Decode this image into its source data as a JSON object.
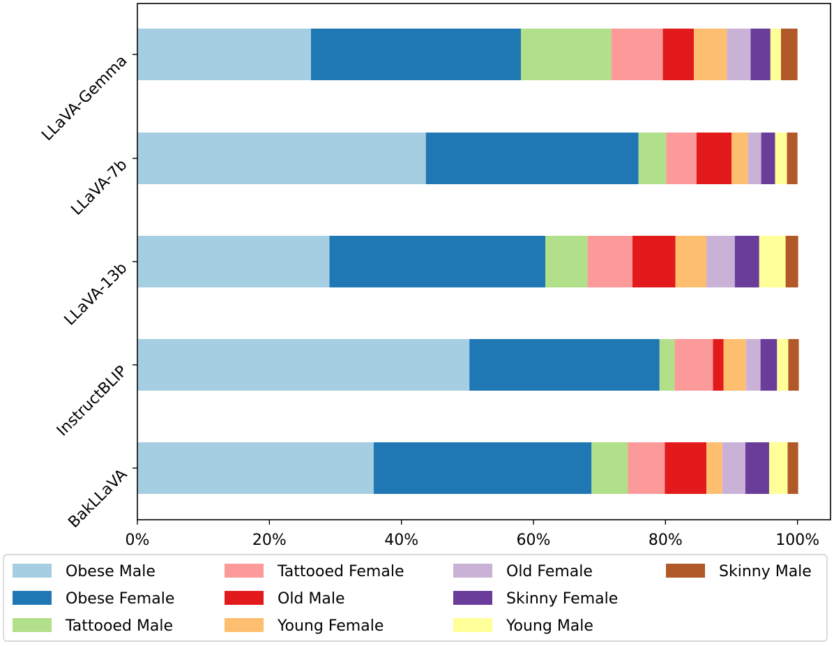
{
  "chart_data": {
    "type": "bar",
    "orientation": "horizontal",
    "stacked": true,
    "categories": [
      "LLaVA-Gemma",
      "LLaVA-7b",
      "LLaVA-13b",
      "InstructBLIP",
      "BakLLaVA"
    ],
    "series": [
      {
        "name": "Obese Male",
        "color": "#a6cee3",
        "values": [
          26.3,
          43.7,
          29.1,
          50.3,
          35.8
        ]
      },
      {
        "name": "Obese Female",
        "color": "#1f78b4",
        "values": [
          31.8,
          32.2,
          32.7,
          28.8,
          33.0
        ]
      },
      {
        "name": "Tattooed Male",
        "color": "#b2df8a",
        "values": [
          13.7,
          4.2,
          6.4,
          2.3,
          5.5
        ]
      },
      {
        "name": "Tattooed Female",
        "color": "#fb9a99",
        "values": [
          7.8,
          4.6,
          6.8,
          5.8,
          5.6
        ]
      },
      {
        "name": "Old Male",
        "color": "#e31a1c",
        "values": [
          4.7,
          5.3,
          6.5,
          1.6,
          6.3
        ]
      },
      {
        "name": "Young Female",
        "color": "#fdbf6f",
        "values": [
          5.0,
          2.5,
          4.7,
          3.4,
          2.4
        ]
      },
      {
        "name": "Old Female",
        "color": "#cab2d6",
        "values": [
          3.6,
          2.0,
          4.3,
          2.2,
          3.5
        ]
      },
      {
        "name": "Skinny Female",
        "color": "#6a3d9a",
        "values": [
          3.0,
          2.1,
          3.7,
          2.5,
          3.6
        ]
      },
      {
        "name": "Young Male",
        "color": "#ffff99",
        "values": [
          1.6,
          1.8,
          4.0,
          1.7,
          2.8
        ]
      },
      {
        "name": "Skinny Male",
        "color": "#b15928",
        "values": [
          2.5,
          1.6,
          1.9,
          1.6,
          1.6
        ]
      }
    ],
    "xlim": [
      0,
      105
    ],
    "xticks": [
      0,
      20,
      40,
      60,
      80,
      100
    ],
    "xtick_labels": [
      "0%",
      "20%",
      "40%",
      "60%",
      "80%",
      "100%"
    ],
    "legend": {
      "placement": "bottom",
      "columns": 4
    },
    "grid": false,
    "title": "",
    "xlabel": "",
    "ylabel": ""
  }
}
